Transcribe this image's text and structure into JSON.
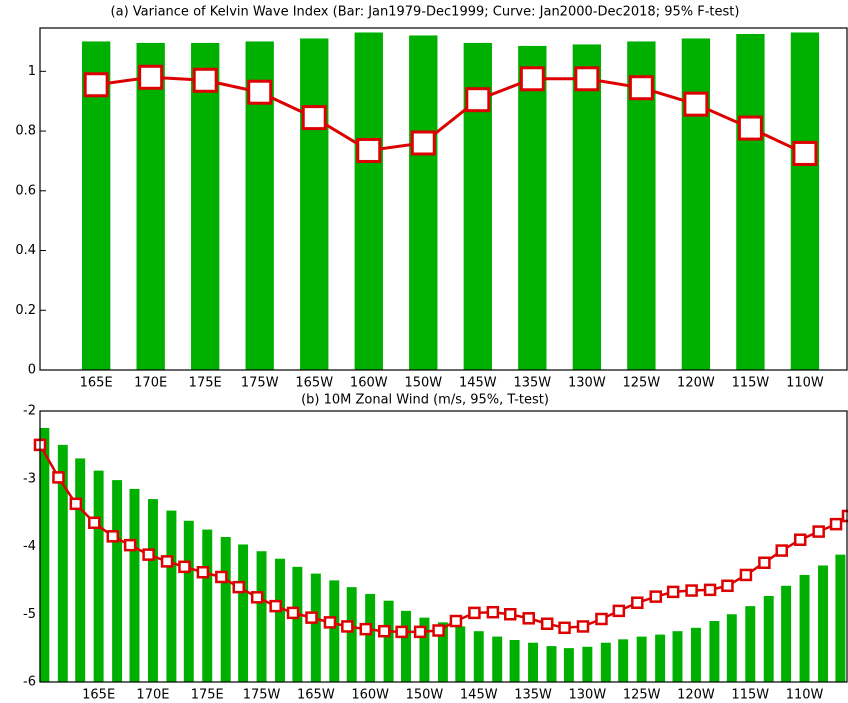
{
  "chart_data": [
    {
      "type": "bar",
      "title": "(a) Variance of Kelvin Wave Index (Bar: Jan1979-Dec1999; Curve: Jan2000-Dec2018; 95% F-test)",
      "categories": [
        "165E",
        "170E",
        "175E",
        "175W",
        "165W",
        "160W",
        "150W",
        "145W",
        "135W",
        "130W",
        "125W",
        "120W",
        "115W",
        "110W"
      ],
      "series": [
        {
          "type": "bar",
          "color": "#00b000",
          "values": [
            1.1,
            1.095,
            1.095,
            1.1,
            1.11,
            1.13,
            1.12,
            1.095,
            1.085,
            1.09,
            1.1,
            1.11,
            1.125,
            1.13
          ]
        },
        {
          "type": "line",
          "color": "#dd0000",
          "values": [
            0.955,
            0.98,
            0.97,
            0.93,
            0.845,
            0.735,
            0.76,
            0.905,
            0.975,
            0.975,
            0.945,
            0.89,
            0.81,
            0.725
          ]
        }
      ],
      "ylim": [
        0,
        1.145
      ],
      "yticks": [
        0,
        0.2,
        0.4,
        0.6,
        0.8,
        1
      ]
    },
    {
      "type": "bar",
      "title": "(b) 10M  Zonal Wind (m/s, 95%, T-test)",
      "series": [
        {
          "type": "bar",
          "color": "#00b000",
          "x": [
            160,
            161.7,
            163.3,
            165,
            166.7,
            168.3,
            170,
            171.7,
            173.3,
            175,
            176.7,
            178.3,
            180,
            181.7,
            183.3,
            185,
            186.7,
            188.3,
            190,
            191.7,
            193.3,
            195,
            196.7,
            198.3,
            200,
            201.7,
            203.3,
            205,
            206.7,
            208.3,
            210,
            211.7,
            213.3,
            215,
            216.7,
            218.3,
            220,
            221.7,
            223.3,
            225,
            226.7,
            228.3,
            230,
            231.7,
            233.3
          ],
          "values": [
            -2.25,
            -2.5,
            -2.7,
            -2.88,
            -3.02,
            -3.15,
            -3.3,
            -3.47,
            -3.62,
            -3.75,
            -3.86,
            -3.97,
            -4.07,
            -4.18,
            -4.3,
            -4.4,
            -4.5,
            -4.6,
            -4.7,
            -4.8,
            -4.95,
            -5.05,
            -5.12,
            -5.18,
            -5.25,
            -5.33,
            -5.38,
            -5.42,
            -5.47,
            -5.5,
            -5.48,
            -5.42,
            -5.37,
            -5.33,
            -5.3,
            -5.25,
            -5.2,
            -5.1,
            -5.0,
            -4.88,
            -4.73,
            -4.58,
            -4.42,
            -4.28,
            -4.12
          ]
        },
        {
          "type": "line",
          "color": "#dd0000",
          "x": [
            159.6,
            161.3,
            162.9,
            164.6,
            166.3,
            167.9,
            169.6,
            171.3,
            172.9,
            174.6,
            176.3,
            177.9,
            179.6,
            181.3,
            182.9,
            184.6,
            186.3,
            187.9,
            189.6,
            191.3,
            192.9,
            194.6,
            196.3,
            197.9,
            199.6,
            201.3,
            202.9,
            204.6,
            206.3,
            207.9,
            209.6,
            211.3,
            212.9,
            214.6,
            216.3,
            217.9,
            219.6,
            221.3,
            222.9,
            224.6,
            226.3,
            227.9,
            229.6,
            231.3,
            232.9,
            234
          ],
          "values": [
            -2.5,
            -2.98,
            -3.37,
            -3.65,
            -3.85,
            -3.98,
            -4.12,
            -4.22,
            -4.3,
            -4.38,
            -4.45,
            -4.6,
            -4.75,
            -4.88,
            -4.98,
            -5.05,
            -5.12,
            -5.18,
            -5.22,
            -5.25,
            -5.26,
            -5.26,
            -5.24,
            -5.1,
            -4.98,
            -4.97,
            -5.0,
            -5.06,
            -5.14,
            -5.2,
            -5.18,
            -5.07,
            -4.95,
            -4.83,
            -4.74,
            -4.67,
            -4.65,
            -4.64,
            -4.58,
            -4.42,
            -4.24,
            -4.06,
            -3.9,
            -3.78,
            -3.67,
            -3.55
          ]
        }
      ],
      "xlim": [
        159.6,
        234
      ],
      "xticks": [
        {
          "value": 165,
          "label": "165E"
        },
        {
          "value": 170,
          "label": "170E"
        },
        {
          "value": 175,
          "label": "175E"
        },
        {
          "value": 180,
          "label": "175W"
        },
        {
          "value": 185,
          "label": "165W"
        },
        {
          "value": 190,
          "label": "160W"
        },
        {
          "value": 195,
          "label": "150W"
        },
        {
          "value": 200,
          "label": "145W"
        },
        {
          "value": 205,
          "label": "135W"
        },
        {
          "value": 210,
          "label": "130W"
        },
        {
          "value": 215,
          "label": "125W"
        },
        {
          "value": 220,
          "label": "120W"
        },
        {
          "value": 225,
          "label": "115W"
        },
        {
          "value": 230,
          "label": "110W"
        }
      ],
      "ylim": [
        -6,
        -2
      ],
      "yticks": [
        -6,
        -5,
        -4,
        -3,
        -2
      ]
    }
  ]
}
